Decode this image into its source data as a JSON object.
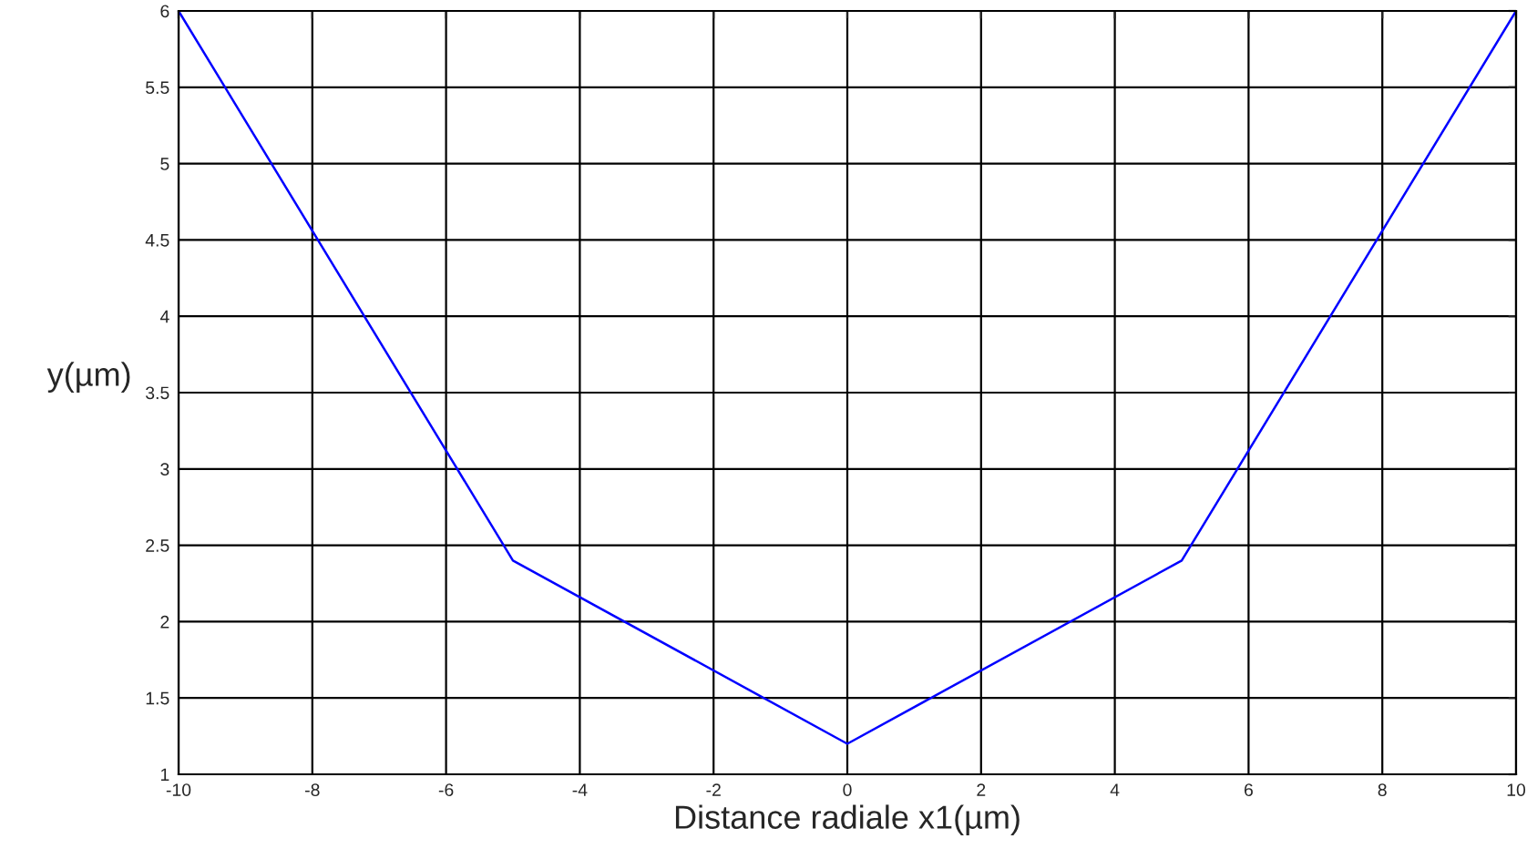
{
  "chart_data": {
    "type": "line",
    "xlabel": "Distance radiale x1(µm)",
    "ylabel": "y(µm)",
    "x": [
      -10,
      -5,
      0,
      5,
      10
    ],
    "series": [
      {
        "color": "#0000ff",
        "values": [
          6,
          2.4,
          1.2,
          2.4,
          6
        ]
      }
    ],
    "xlim": [
      -10,
      10
    ],
    "xticks": [
      -10,
      -8,
      -6,
      -4,
      -2,
      0,
      2,
      4,
      6,
      8,
      10
    ],
    "ylim": [
      1,
      6
    ],
    "yticks": [
      1,
      1.5,
      2,
      2.5,
      3,
      3.5,
      4,
      4.5,
      5,
      5.5,
      6
    ],
    "grid": true,
    "line_style": "solid",
    "marker": "none"
  }
}
